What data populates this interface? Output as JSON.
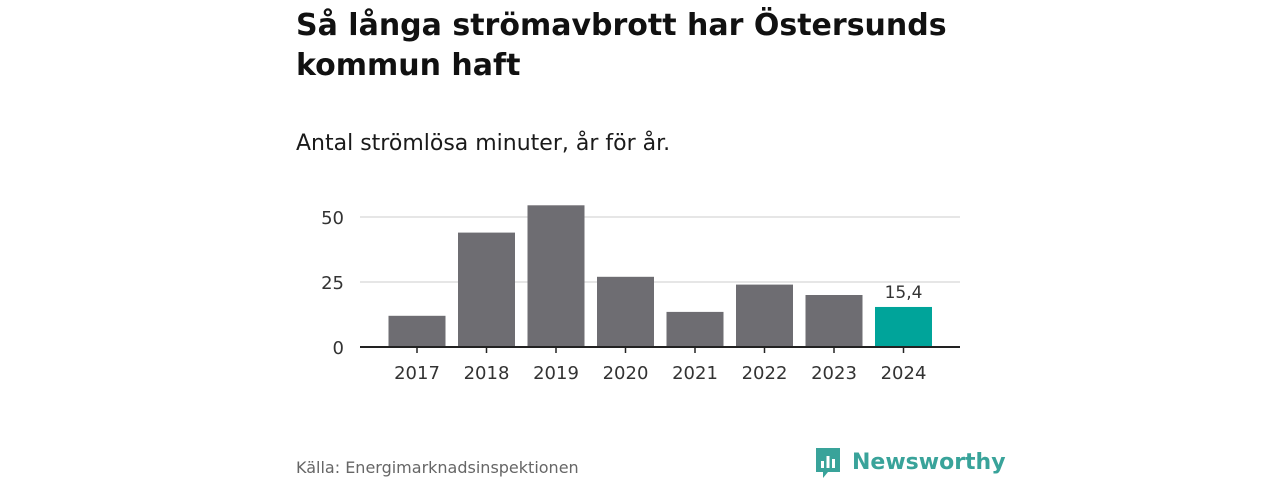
{
  "title": "Så långa strömavbrott har Östersunds kommun haft",
  "subtitle": "Antal strömlösa minuter, år för år.",
  "source": "Källa: Energimarknadsinspektionen",
  "brand": {
    "name": "Newsworthy",
    "icon": "newsworthy-logo-icon",
    "color": "#39a39a"
  },
  "colors": {
    "bar": "#6e6d72",
    "highlight": "#00a49a",
    "grid": "#dddddd",
    "axis": "#222222"
  },
  "chart_data": {
    "type": "bar",
    "categories": [
      "2017",
      "2018",
      "2019",
      "2020",
      "2021",
      "2022",
      "2023",
      "2024"
    ],
    "values": [
      12,
      44,
      54.5,
      27,
      13.5,
      24,
      20,
      15.4
    ],
    "highlight_index": 7,
    "data_labels": [
      {
        "index": 7,
        "text": "15,4"
      }
    ],
    "yticks": [
      0,
      25,
      50
    ],
    "ylim": [
      0,
      55
    ],
    "grid": true,
    "legend": "none"
  }
}
